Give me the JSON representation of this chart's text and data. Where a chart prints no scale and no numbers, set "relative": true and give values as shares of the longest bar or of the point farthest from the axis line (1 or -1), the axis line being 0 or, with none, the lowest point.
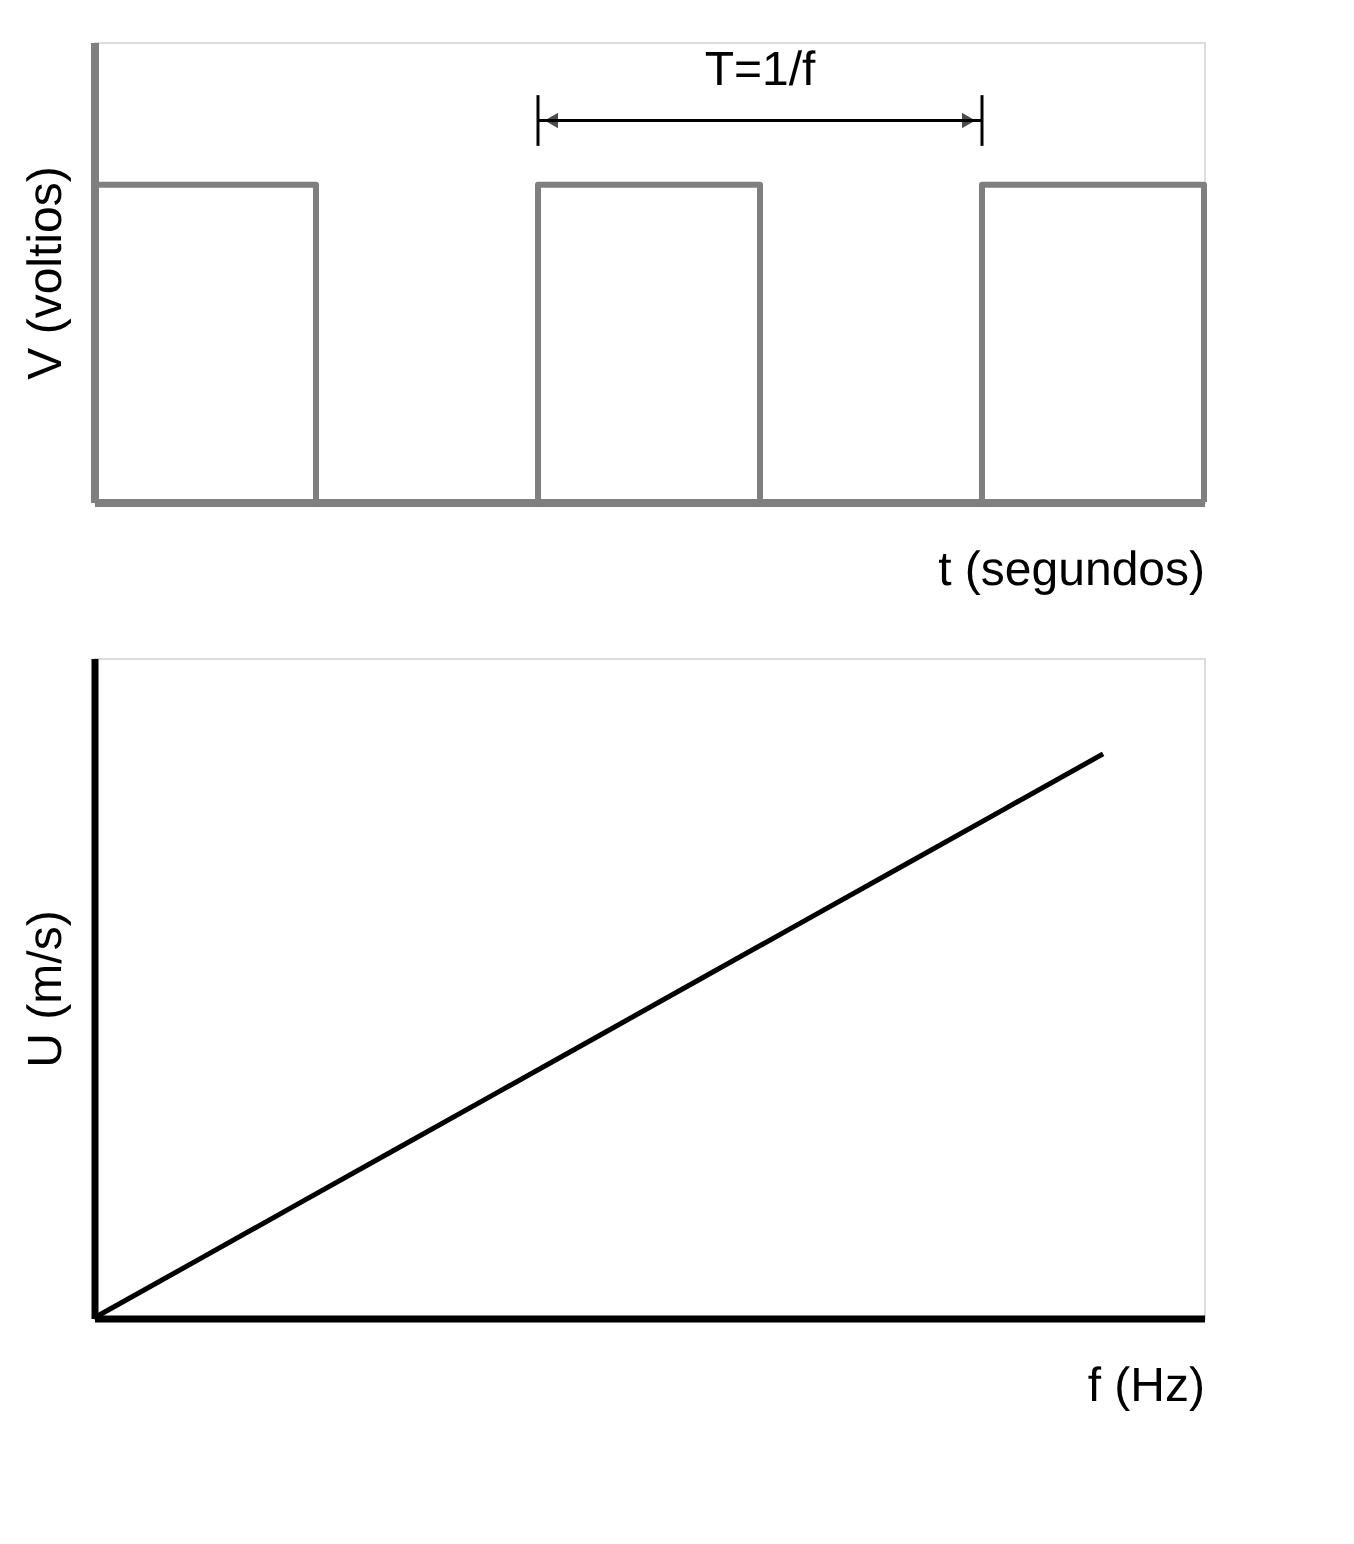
{
  "chart_data": [
    {
      "type": "step",
      "relative": true,
      "xlabel": "t (segundos)",
      "ylabel": "V (voltios)",
      "categories": [
        null,
        null,
        null,
        null,
        null,
        null
      ],
      "color": "#7f7f7f",
      "values": [
        1,
        0,
        1,
        0,
        1,
        0
      ],
      "annotations": [
        "T=1/f"
      ]
    },
    {
      "type": "line",
      "relative": true,
      "xlabel": "f (Hz)",
      "ylabel": "U (m/s)",
      "categories": [
        null,
        null,
        null,
        null,
        null,
        null,
        null,
        null,
        null,
        null,
        null,
        null
      ],
      "color": "#000000",
      "values": [
        0,
        0.1,
        0.2,
        0.3,
        0.4,
        0.5,
        0.6,
        0.7,
        0.8,
        0.9,
        1.0,
        null
      ]
    }
  ]
}
